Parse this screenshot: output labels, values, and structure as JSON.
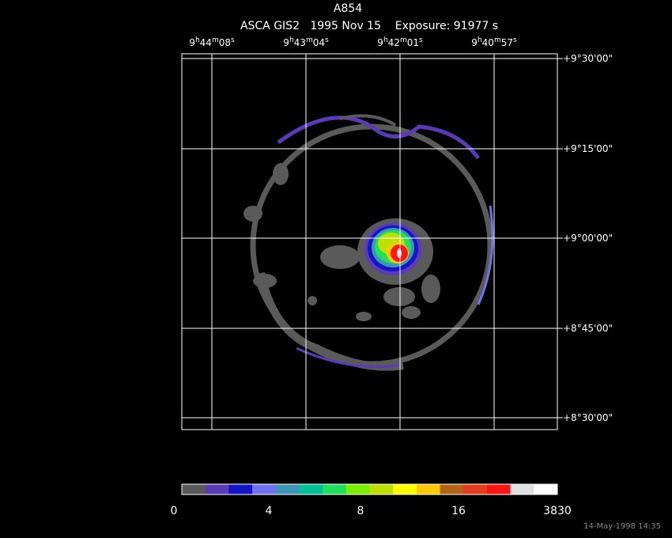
{
  "header": {
    "title": "A854",
    "subtitle": "ASCA GIS2   1995 Nov 15    Exposure: 91977 s"
  },
  "ra_labels": [
    "9h44m08s",
    "9h43m04s",
    "9h42m01s",
    "9h40m57s"
  ],
  "dec_labels": [
    "+9°30'00\"",
    "+9°15'00\"",
    "+9°00'00\"",
    "+8°45'00\"",
    "+8°30'00\""
  ],
  "colorbar": {
    "ticks": [
      0,
      4,
      8,
      16,
      3830
    ],
    "colors": [
      "#5a5a5a",
      "#5a3ab8",
      "#1414c8",
      "#7070f0",
      "#3c96b4",
      "#00c096",
      "#1ee05a",
      "#78f000",
      "#bee000",
      "#ffff00",
      "#ffc800",
      "#b46414",
      "#e63c1e",
      "#ff1414",
      "#e1e1e1",
      "#ffffff"
    ]
  },
  "footer": {
    "timestamp": "14-May-1998 14:35"
  }
}
